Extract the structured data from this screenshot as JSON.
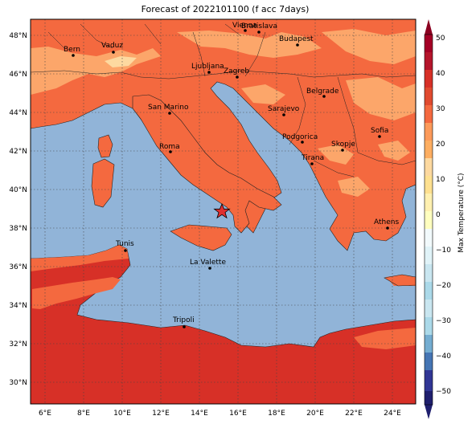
{
  "title": "Forecast of 2022101100 (f acc 7days)",
  "lat_ticks": [
    "48°N",
    "46°N",
    "44°N",
    "42°N",
    "40°N",
    "38°N",
    "36°N",
    "34°N",
    "32°N",
    "30°N"
  ],
  "lon_ticks": [
    "6°E",
    "8°E",
    "10°E",
    "12°E",
    "14°E",
    "16°E",
    "18°E",
    "20°E",
    "22°E",
    "24°E"
  ],
  "cities": [
    {
      "name": "Vienna",
      "label": "Vienna"
    },
    {
      "name": "Bratislava",
      "label": "Bratislava"
    },
    {
      "name": "Bern",
      "label": "Bern"
    },
    {
      "name": "Vaduz",
      "label": "Vaduz"
    },
    {
      "name": "Budapest",
      "label": "Budapest"
    },
    {
      "name": "Ljubljana",
      "label": "Ljubljana"
    },
    {
      "name": "Zagreb",
      "label": "Zagreb"
    },
    {
      "name": "Belgrade",
      "label": "Belgrade"
    },
    {
      "name": "San Marino",
      "label": "San Marino"
    },
    {
      "name": "Sarajevo",
      "label": "Sarajevo"
    },
    {
      "name": "Sofia",
      "label": "Sofia"
    },
    {
      "name": "Podgorica",
      "label": "Podgorica"
    },
    {
      "name": "Skopje",
      "label": "Skopje"
    },
    {
      "name": "Roma",
      "label": "Roma"
    },
    {
      "name": "Tirana",
      "label": "Tirana"
    },
    {
      "name": "Athens",
      "label": "Athens"
    },
    {
      "name": "Tunis",
      "label": "Tunis"
    },
    {
      "name": "La Valette",
      "label": "La Valette"
    },
    {
      "name": "Tripoli",
      "label": "Tripoli"
    }
  ],
  "colorbar": {
    "label": "Max Temperature (°C)",
    "ticks": [
      "50",
      "40",
      "30",
      "20",
      "10",
      "0",
      "−10",
      "−20",
      "−30",
      "−40",
      "−50"
    ],
    "colors": [
      "#313695",
      "#4575b4",
      "#74add1",
      "#abd9e9",
      "#e0f3f8",
      "#fee090",
      "#fdae61",
      "#f46d43",
      "#d73027",
      "#a50026"
    ]
  },
  "map_colors": {
    "sea": "#91b4d8",
    "land_warm": "#f4693f",
    "land_mild": "#fca66a",
    "land_cool": "#fdd9a0",
    "land_hot": "#d73027"
  }
}
